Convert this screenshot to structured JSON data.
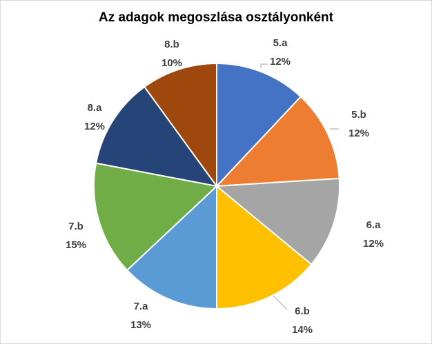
{
  "chart_data": {
    "type": "pie",
    "title": "Az adagok megoszlása osztályonként",
    "categories": [
      "5.a",
      "5.b",
      "6.a",
      "6.b",
      "7.a",
      "7.b",
      "8.a",
      "8.b"
    ],
    "values": [
      12,
      12,
      12,
      14,
      13,
      15,
      12,
      10
    ],
    "value_labels": [
      "12%",
      "12%",
      "12%",
      "14%",
      "13%",
      "15%",
      "12%",
      "10%"
    ],
    "colors": [
      "#4472C4",
      "#ED7D31",
      "#A5A5A5",
      "#FFC000",
      "#5B9BD5",
      "#70AD47",
      "#264478",
      "#9E480E"
    ],
    "start": "12 o'clock",
    "direction": "clockwise",
    "legend": "none",
    "data_labels": "outside"
  }
}
